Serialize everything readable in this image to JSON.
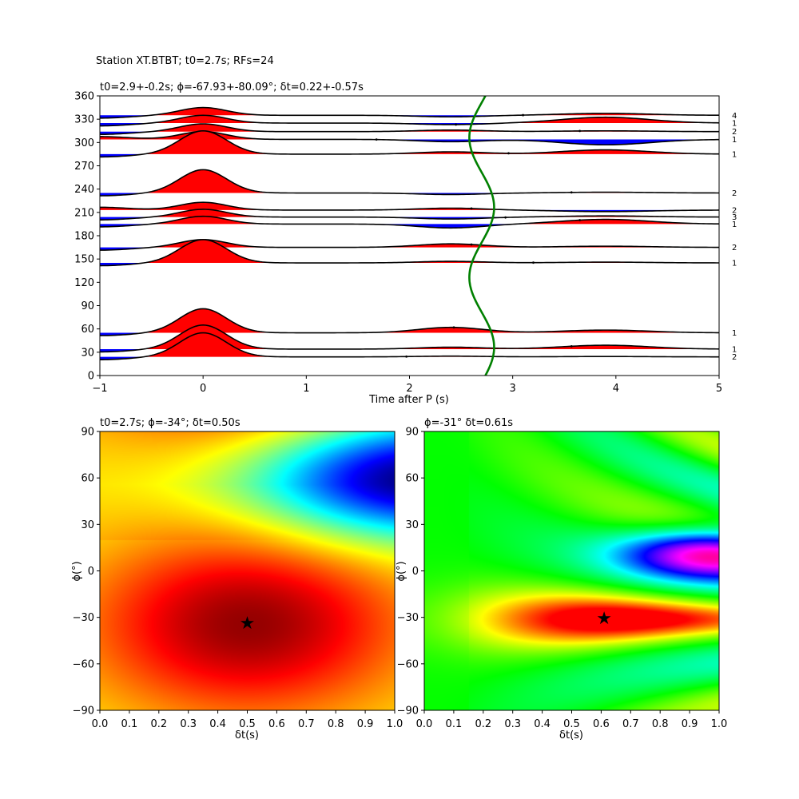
{
  "suptitle": "Station XT.BTBT; t0=2.7s; RFs=24",
  "chart_data": [
    {
      "type": "line",
      "name": "receiver-functions",
      "title": "t0=2.9+-0.2s; ϕ=-67.93+-80.09°; δt=0.22+-0.57s",
      "xlabel": "Time after P (s)",
      "ylabel": "",
      "xlim": [
        -1,
        5
      ],
      "ylim": [
        0,
        360
      ],
      "xticks": [
        -1,
        0,
        1,
        2,
        3,
        4,
        5
      ],
      "yticks": [
        0,
        30,
        60,
        90,
        120,
        150,
        180,
        210,
        240,
        270,
        300,
        330,
        360
      ],
      "positive_fill_color": "#ff0000",
      "negative_fill_color": "#0000ff",
      "trace_color": "#000000",
      "trace_half_span_deg": 10,
      "traces": [
        {
          "baz": 24,
          "count": "2",
          "amp": 3.1,
          "amp2": 0.1,
          "amp3": 0.05,
          "pick_t": 1.97
        },
        {
          "baz": 34,
          "count": "1",
          "amp": 3.1,
          "amp2": 0.25,
          "amp3": 0.5,
          "pick_t": 3.57
        },
        {
          "baz": 55,
          "count": "1",
          "amp": 3.1,
          "amp2": 0.7,
          "amp3": 0.35,
          "pick_t": 2.43
        },
        {
          "baz": 145,
          "count": "1",
          "amp": 3.0,
          "amp2": 0.2,
          "amp3": 0.1,
          "pick_t": 3.2
        },
        {
          "baz": 165,
          "count": "2",
          "amp": 1.0,
          "amp2": 0.45,
          "amp3": 0.15,
          "pick_t": 2.6
        },
        {
          "baz": 195,
          "count": "1",
          "amp": 1.0,
          "amp2": -0.5,
          "amp3": 0.6,
          "pick_t": 3.65
        },
        {
          "baz": 204,
          "count": "3",
          "amp": 1.0,
          "amp2": -0.25,
          "amp3": 0.15,
          "pick_t": 2.93
        },
        {
          "baz": 213,
          "count": "2",
          "amp": 1.0,
          "amp2": 0.25,
          "amp3": -0.2,
          "pick_t": 2.6
        },
        {
          "baz": 235,
          "count": "2",
          "amp": 3.0,
          "amp2": -0.2,
          "amp3": 0.1,
          "pick_t": 3.57
        },
        {
          "baz": 285,
          "count": "1",
          "amp": 3.0,
          "amp2": 0.3,
          "amp3": 0.55,
          "pick_t": 2.96
        },
        {
          "baz": 304,
          "count": "1",
          "amp": 1.0,
          "amp2": -0.3,
          "amp3": -0.7,
          "pick_t": 1.68
        },
        {
          "baz": 314,
          "count": "2",
          "amp": 1.0,
          "amp2": 0.2,
          "amp3": 0.1,
          "pick_t": 3.65
        },
        {
          "baz": 325,
          "count": "1",
          "amp": 1.0,
          "amp2": -0.2,
          "amp3": 0.75,
          "pick_t": 2.45
        },
        {
          "baz": 335,
          "count": "4",
          "amp": 1.0,
          "amp2": -0.2,
          "amp3": 0.25,
          "pick_t": 3.1
        }
      ],
      "t0_curve": {
        "color": "#008000",
        "center": 2.7,
        "amplitude": 0.12
      }
    },
    {
      "type": "heatmap",
      "name": "energy-map-left",
      "title": "t0=2.7s; ϕ=-34°; δt=0.50s",
      "xlabel": "δt(s)",
      "ylabel": "ϕ(°)",
      "xlim": [
        0,
        1
      ],
      "ylim": [
        -90,
        90
      ],
      "xticks": [
        0.0,
        0.1,
        0.2,
        0.3,
        0.4,
        0.5,
        0.6,
        0.7,
        0.8,
        0.9,
        1.0
      ],
      "yticks": [
        -90,
        -60,
        -30,
        0,
        30,
        60,
        90
      ],
      "colormap": "jet",
      "best": {
        "dt": 0.5,
        "phi": -34
      }
    },
    {
      "type": "heatmap",
      "name": "energy-map-right",
      "title": "ϕ=-31° δt=0.61s",
      "xlabel": "δt(s)",
      "ylabel": "ϕ(°)",
      "xlim": [
        0,
        1
      ],
      "ylim": [
        -90,
        90
      ],
      "xticks": [
        0.0,
        0.1,
        0.2,
        0.3,
        0.4,
        0.5,
        0.6,
        0.7,
        0.8,
        0.9,
        1.0
      ],
      "yticks": [
        -90,
        -60,
        -30,
        0,
        30,
        60,
        90
      ],
      "colormap": "hsv",
      "best": {
        "dt": 0.61,
        "phi": -31
      }
    }
  ]
}
